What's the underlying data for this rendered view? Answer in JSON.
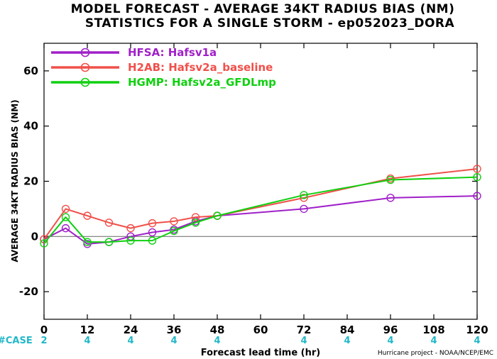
{
  "title_line1": "MODEL FORECAST - AVERAGE 34KT RADIUS BIAS (NM)",
  "title_line2": "STATISTICS FOR A SINGLE STORM - ep052023_DORA",
  "credit": "Hurricane project - NOAA/NCEP/EMC",
  "case_label": "#CASE",
  "colors": {
    "case": "#22b8c8",
    "zero_line": "#777777"
  },
  "chart_data": {
    "type": "line",
    "xlabel": "Forecast lead time (hr)",
    "ylabel": "AVERAGE 34KT RADIUS BIAS (NM)",
    "xlim": [
      0,
      120
    ],
    "ylim": [
      -30,
      70
    ],
    "xticks": [
      0,
      12,
      24,
      36,
      48,
      60,
      72,
      84,
      96,
      108,
      120
    ],
    "yticks": [
      -20,
      0,
      20,
      40,
      60
    ],
    "legend_position": "top-left",
    "cases": [
      {
        "x": 0,
        "n": "2"
      },
      {
        "x": 12,
        "n": "4"
      },
      {
        "x": 24,
        "n": "4"
      },
      {
        "x": 36,
        "n": "4"
      },
      {
        "x": 48,
        "n": "4"
      },
      {
        "x": 72,
        "n": "4"
      },
      {
        "x": 84,
        "n": "4"
      },
      {
        "x": 96,
        "n": "4"
      },
      {
        "x": 108,
        "n": "4"
      },
      {
        "x": 120,
        "n": "4"
      }
    ],
    "series": [
      {
        "name": "HFSA: Hafsv1a",
        "color": "#a020c8",
        "x": [
          0,
          6,
          12,
          18,
          24,
          30,
          36,
          42,
          48,
          72,
          96,
          120
        ],
        "y": [
          -1,
          3,
          -2.7,
          -2,
          0,
          1.5,
          2.5,
          5.5,
          7.5,
          10,
          14,
          14.7
        ]
      },
      {
        "name": "H2AB: Hafsv2a_baseline",
        "color": "#f0504a",
        "x": [
          0,
          6,
          12,
          18,
          24,
          30,
          36,
          42,
          48,
          72,
          96,
          120
        ],
        "y": [
          -1,
          10,
          7.5,
          5,
          3,
          4.8,
          5.5,
          7,
          7.5,
          14,
          21,
          24.5
        ]
      },
      {
        "name": "HGMP: Hafsv2a_GFDLmp",
        "color": "#10d010",
        "x": [
          0,
          6,
          12,
          18,
          24,
          30,
          36,
          42,
          48,
          72,
          96,
          120
        ],
        "y": [
          -2.5,
          7,
          -2,
          -2,
          -1.5,
          -1.5,
          2,
          5,
          7.5,
          15,
          20.5,
          21.5
        ]
      }
    ]
  }
}
